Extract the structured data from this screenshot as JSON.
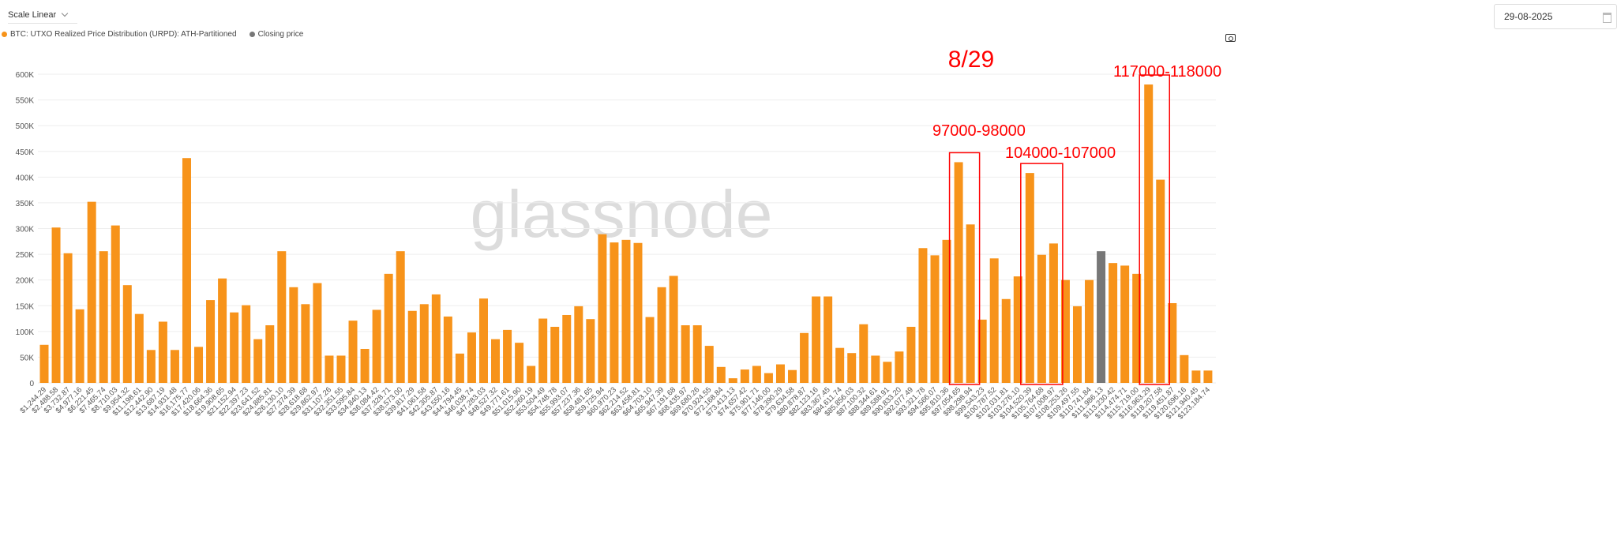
{
  "toolbar": {
    "scale_label": "Scale Linear",
    "date_value": "29-08-2025"
  },
  "icons": {
    "scale_dropdown": "chevron-down-icon",
    "date": "calendar-icon",
    "screenshot": "camera-icon"
  },
  "watermark": "glassnode",
  "annotations": {
    "date_note": "8/29",
    "boxes": [
      {
        "label": "97000-98000",
        "from_bin": 78,
        "to_bin": 79
      },
      {
        "label": "104000-107000",
        "from_bin": 84,
        "to_bin": 86
      },
      {
        "label": "117000-118000",
        "from_bin": 94,
        "to_bin": 95
      }
    ],
    "color": "#ff0000"
  },
  "chart_data": {
    "type": "bar",
    "legend": [
      {
        "name": "BTC: UTXO Realized Price Distribution (URPD): ATH-Partitioned",
        "color": "#f7931a"
      },
      {
        "name": "Closing price",
        "color": "#777777"
      }
    ],
    "legend_position": "top-left",
    "grid": true,
    "ylim": [
      0,
      600000
    ],
    "yticks": [
      "0",
      "50K",
      "100K",
      "150K",
      "200K",
      "250K",
      "300K",
      "350K",
      "400K",
      "450K",
      "500K",
      "550K",
      "600K"
    ],
    "closing_price_bin": "$111,986.13",
    "categories": [
      "$1,244.29",
      "$2,488.58",
      "$3,732.87",
      "$4,977.16",
      "$6,221.45",
      "$7,465.74",
      "$8,710.03",
      "$9,954.32",
      "$11,198.61",
      "$12,442.90",
      "$13,687.19",
      "$14,931.48",
      "$16,175.77",
      "$17,420.06",
      "$18,664.36",
      "$19,908.65",
      "$21,152.94",
      "$22,397.23",
      "$23,641.52",
      "$24,885.81",
      "$26,130.10",
      "$27,374.39",
      "$28,618.68",
      "$29,862.97",
      "$31,107.26",
      "$32,351.55",
      "$33,595.84",
      "$34,840.13",
      "$36,084.42",
      "$37,328.71",
      "$38,573.00",
      "$39,817.29",
      "$41,061.58",
      "$42,305.87",
      "$43,550.16",
      "$44,794.45",
      "$46,038.74",
      "$47,283.03",
      "$48,527.32",
      "$49,771.61",
      "$51,015.90",
      "$52,260.19",
      "$53,504.49",
      "$54,748.78",
      "$55,993.07",
      "$57,237.36",
      "$58,481.65",
      "$59,725.94",
      "$60,970.23",
      "$62,214.52",
      "$63,458.81",
      "$64,703.10",
      "$65,947.39",
      "$67,191.68",
      "$68,435.97",
      "$69,680.26",
      "$70,924.55",
      "$72,168.84",
      "$73,413.13",
      "$74,657.42",
      "$75,901.71",
      "$77,146.00",
      "$78,390.29",
      "$79,634.58",
      "$80,878.87",
      "$82,123.16",
      "$83,367.45",
      "$84,611.74",
      "$85,856.03",
      "$87,100.32",
      "$88,344.61",
      "$89,588.91",
      "$90,833.20",
      "$92,077.49",
      "$93,321.78",
      "$94,566.07",
      "$95,810.36",
      "$97,054.65",
      "$98,298.94",
      "$99,543.23",
      "$100,787.52",
      "$102,031.81",
      "$103,276.10",
      "$104,520.39",
      "$105,764.68",
      "$107,008.97",
      "$108,253.26",
      "$109,497.55",
      "$110,741.84",
      "$111,986.13",
      "$113,230.42",
      "$114,474.71",
      "$115,719.00",
      "$116,963.29",
      "$118,207.58",
      "$119,451.87",
      "$120,696.16",
      "$121,940.45",
      "$123,184.74"
    ],
    "values": [
      74000,
      302000,
      252000,
      143000,
      352000,
      256000,
      306000,
      190000,
      134000,
      64000,
      119000,
      64000,
      437000,
      70000,
      161000,
      203000,
      137000,
      151000,
      85000,
      112000,
      256000,
      186000,
      153000,
      194000,
      53000,
      53000,
      121000,
      66000,
      142000,
      212000,
      256000,
      140000,
      153000,
      172000,
      129000,
      57000,
      98000,
      164000,
      85000,
      103000,
      78000,
      33000,
      125000,
      109000,
      132000,
      149000,
      124000,
      289000,
      273000,
      278000,
      272000,
      128000,
      186000,
      208000,
      112000,
      112000,
      72000,
      31000,
      9000,
      26000,
      33000,
      19000,
      36000,
      25000,
      97000,
      168000,
      168000,
      68000,
      58000,
      114000,
      53000,
      41000,
      61000,
      109000,
      262000,
      248000,
      278000,
      429000,
      308000,
      123000,
      242000,
      163000,
      207000,
      408000,
      249000,
      271000,
      200000,
      149000,
      200000,
      256000,
      233000,
      228000,
      212000,
      580000,
      395000,
      155000,
      54000,
      24000,
      24000
    ]
  }
}
